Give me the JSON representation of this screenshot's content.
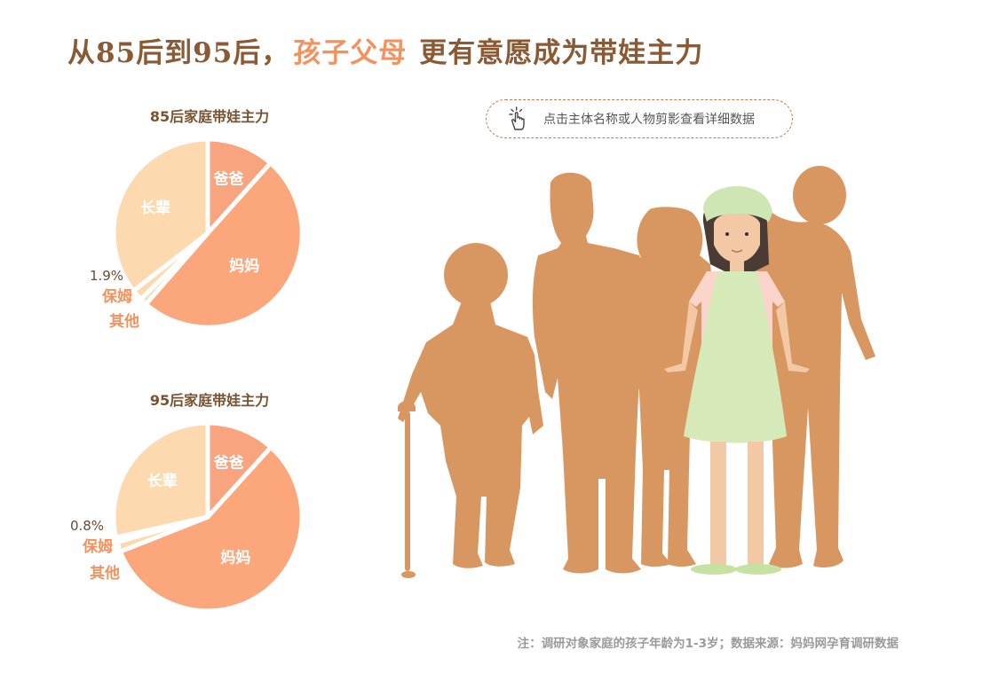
{
  "title": {
    "before": "从85后到95后，",
    "highlight": "孩子父母",
    "after": "更有意愿成为带娃主力"
  },
  "hint": {
    "text": "点击主体名称或人物剪影查看详细数据",
    "icon": "pointer-click-icon"
  },
  "footnote": "注：调研对象家庭的孩子年龄为1-3岁；数据来源：妈妈网孕育调研数据",
  "colors": {
    "dad": "#f8a47e",
    "mom": "#fca77b",
    "nanny": "#fdd9b0",
    "other": "#fdd9b0",
    "elder": "#fdd9b0",
    "silhouette": "#d89760",
    "title": "#8a5a34",
    "accent": "#f2935f"
  },
  "chart_data": [
    {
      "type": "pie",
      "title": "85后家庭带娃主力",
      "slices": [
        {
          "label": "爸爸",
          "value": 11.6
        },
        {
          "label": "妈妈",
          "value": 49.8
        },
        {
          "label": "其他",
          "value": 1.2
        },
        {
          "label": "保姆",
          "value": 1.9
        },
        {
          "label": "长辈",
          "value": 35.5
        }
      ],
      "annotation": "1.9%"
    },
    {
      "type": "pie",
      "title": "95后家庭带娃主力",
      "slices": [
        {
          "label": "爸爸",
          "value": 11.7
        },
        {
          "label": "妈妈",
          "value": 57.3
        },
        {
          "label": "其他",
          "value": 1.7
        },
        {
          "label": "保姆",
          "value": 0.8
        },
        {
          "label": "长辈",
          "value": 28.5
        }
      ],
      "annotation": "0.8%"
    }
  ]
}
